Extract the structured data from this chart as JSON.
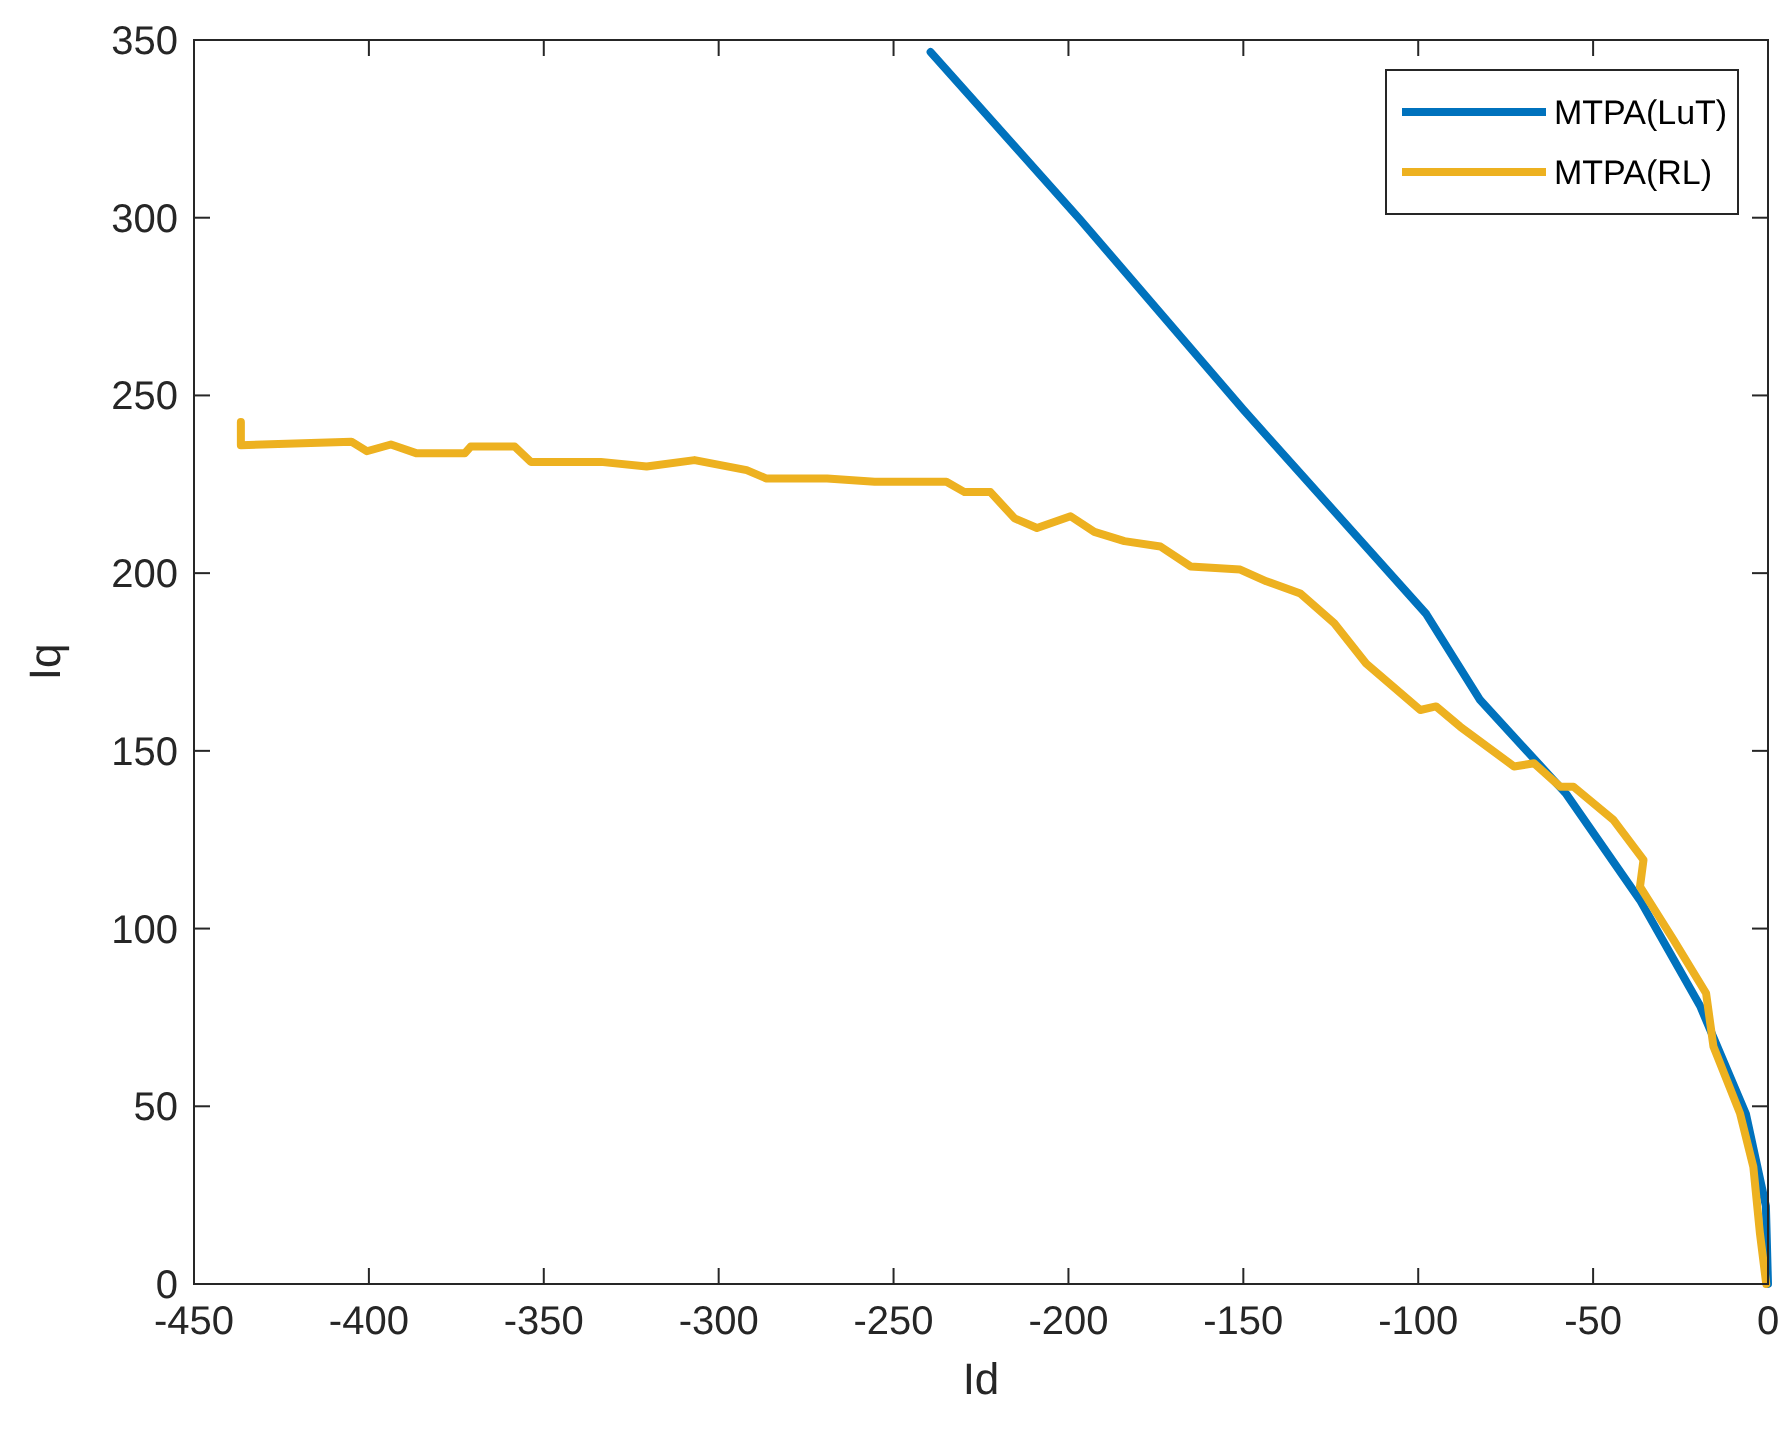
{
  "chart_data": {
    "type": "line",
    "xlabel": "Id",
    "ylabel": "Iq",
    "xlim": [
      -450,
      0
    ],
    "ylim": [
      0,
      350
    ],
    "xticks": [
      -450,
      -400,
      -350,
      -300,
      -250,
      -200,
      -150,
      -100,
      -50,
      0
    ],
    "yticks": [
      0,
      50,
      100,
      150,
      200,
      250,
      300,
      350
    ],
    "grid": false,
    "legend": "top right",
    "marker": "none",
    "line_style": "solid",
    "series": [
      {
        "name": "MTPA(LuT)",
        "color": "#0072bd",
        "x": [
          -239.4,
          -196.6,
          -150,
          -97.7,
          -82.3,
          -57.7,
          -36.6,
          -19.4,
          -6.3,
          -0.6,
          0
        ],
        "values": [
          346.6,
          299.4,
          246,
          188.5,
          164.3,
          137.9,
          108,
          78.2,
          47.8,
          21.9,
          0
        ]
      },
      {
        "name": "MTPA(RL)",
        "color": "#edb120",
        "x": [
          -436.6,
          -436.6,
          -405,
          -400.6,
          -393.7,
          -386.3,
          -372.6,
          -370.9,
          -358.3,
          -353.7,
          -333.7,
          -320.6,
          -306.9,
          -292,
          -286.3,
          -269,
          -255.4,
          -234.9,
          -229.7,
          -222.3,
          -215.4,
          -209,
          -199.4,
          -192.6,
          -184,
          -173.7,
          -165.1,
          -150.9,
          -143.4,
          -133.7,
          -124,
          -114.9,
          -99.4,
          -94.9,
          -88,
          -72.6,
          -66.9,
          -59.4,
          -55.6,
          -44.2,
          -35.6,
          -36.6,
          -27,
          -17.7,
          -15.6,
          -8,
          -4.2,
          -2.3,
          -0.5
        ],
        "values": [
          242.5,
          236,
          237,
          234.3,
          236.2,
          233.7,
          233.7,
          235.6,
          235.6,
          231.3,
          231.3,
          230,
          231.8,
          229,
          226.6,
          226.6,
          225.7,
          225.7,
          222.8,
          222.8,
          215.4,
          212.7,
          216,
          211.6,
          209,
          207.5,
          201.9,
          201,
          197.7,
          194.3,
          185.9,
          174.6,
          161.5,
          162.5,
          156.8,
          145.6,
          146.5,
          139.9,
          139.9,
          130.6,
          119.3,
          111.8,
          96.8,
          81.8,
          66.8,
          48,
          33,
          14.2,
          0
        ]
      }
    ]
  }
}
